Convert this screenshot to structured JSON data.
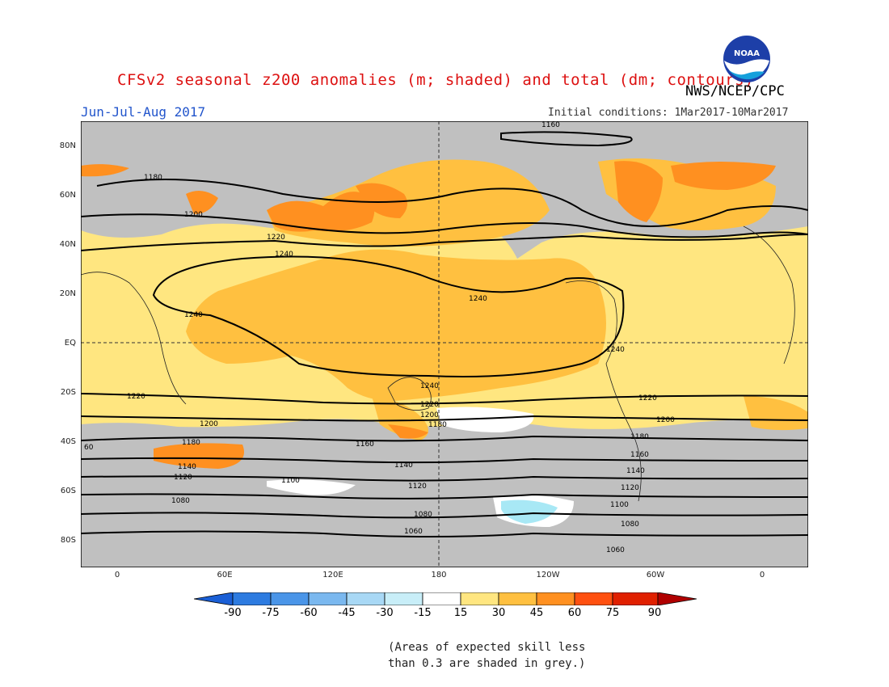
{
  "header": {
    "title": "CFSv2 seasonal z200 anomalies (m; shaded) and total (dm; contours)",
    "period": "Jun-Jul-Aug 2017",
    "agency": "NWS/NCEP/CPC",
    "initial_conditions": "Initial conditions: 1Mar2017-10Mar2017",
    "logo_text": "NOAA"
  },
  "axes": {
    "lat_labels": [
      "80N",
      "60N",
      "40N",
      "20N",
      "EQ",
      "20S",
      "40S",
      "60S",
      "80S"
    ],
    "lon_labels": [
      "0",
      "60E",
      "120E",
      "180",
      "120W",
      "60W",
      "0"
    ]
  },
  "contours": [
    {
      "label": "1160"
    },
    {
      "label": "1180"
    },
    {
      "label": "1200"
    },
    {
      "label": "1220"
    },
    {
      "label": "1240"
    },
    {
      "label": "1100"
    },
    {
      "label": "1080"
    },
    {
      "label": "1060"
    },
    {
      "label": "1140"
    },
    {
      "label": "1120"
    },
    {
      "label": "60"
    }
  ],
  "colorbar": {
    "ticks": [
      "-90",
      "-75",
      "-60",
      "-45",
      "-30",
      "-15",
      "15",
      "30",
      "45",
      "60",
      "75",
      "90"
    ],
    "colors": [
      "#1a5fd6",
      "#2d7be0",
      "#4a95e8",
      "#7ab8ef",
      "#a8d8f5",
      "#c8eef8",
      "#ffffff",
      "#ffe680",
      "#ffc040",
      "#ff9020",
      "#ff5010",
      "#e02000",
      "#b00000"
    ]
  },
  "note": {
    "line1": "(Areas of expected skill less",
    "line2": "than 0.3 are shaded in grey.)"
  },
  "colors": {
    "grey_shade": "#c0c0c0",
    "title_red": "#dd1111",
    "period_blue": "#2255cc"
  }
}
